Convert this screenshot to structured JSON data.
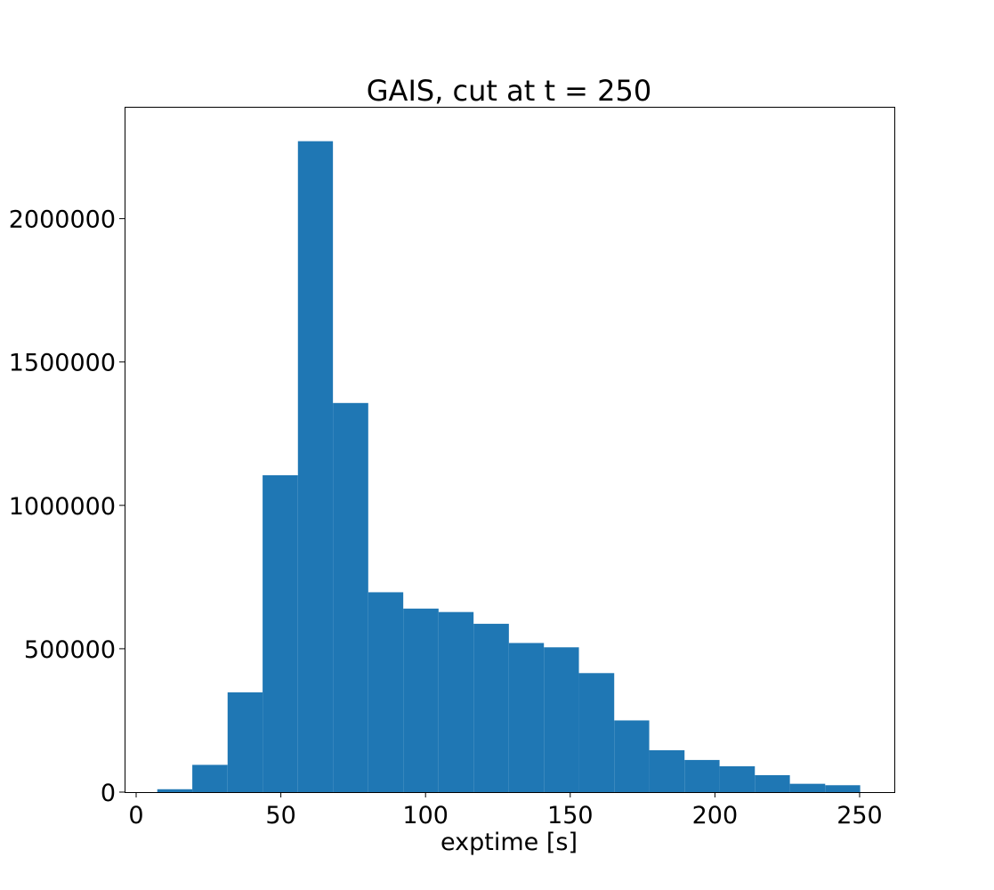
{
  "chart_data": {
    "type": "bar",
    "title": "GAIS, cut at t = 250",
    "xlabel": "exptime [s]",
    "ylabel": "",
    "xlim": [
      -4,
      262
    ],
    "ylim": [
      0,
      2390000
    ],
    "xticks": [
      0,
      50,
      100,
      150,
      200,
      250
    ],
    "xtick_labels": [
      "0",
      "50",
      "100",
      "150",
      "200",
      "250"
    ],
    "yticks": [
      0,
      500000,
      1000000,
      1500000,
      2000000
    ],
    "ytick_labels": [
      "0",
      "500000",
      "1000000",
      "1500000",
      "2000000"
    ],
    "bin_edges": [
      7.3,
      19.4,
      31.6,
      43.7,
      55.9,
      68.0,
      80.2,
      92.3,
      104.5,
      116.6,
      128.8,
      140.9,
      153.0,
      165.2,
      177.3,
      189.5,
      201.6,
      213.8,
      225.9,
      238.1,
      250.2
    ],
    "values": [
      10000,
      95000,
      348000,
      1105000,
      2270000,
      1357000,
      697000,
      640000,
      628000,
      587000,
      520000,
      505000,
      415000,
      250000,
      146000,
      112000,
      90000,
      59000,
      29000,
      24000
    ],
    "bar_color": "#1f77b4",
    "grid": false,
    "legend": "none"
  }
}
